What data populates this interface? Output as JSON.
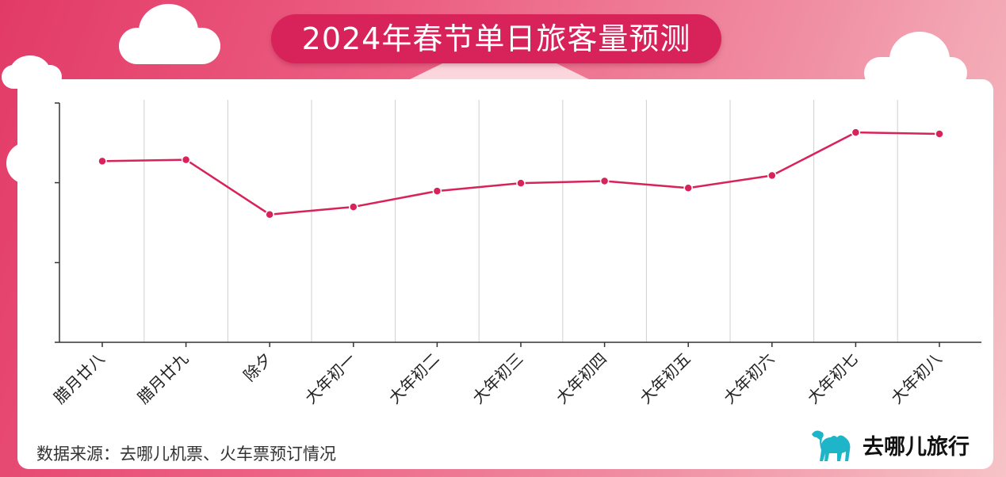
{
  "title": "2024年春节单日旅客量预测",
  "source": "数据来源：去哪儿机票、火车票预订情况",
  "brand": {
    "name": "去哪儿旅行",
    "icon": "camel-icon",
    "color": "#1fb5c8"
  },
  "colors": {
    "line": "#d8225a",
    "title_bg": "#d8225a"
  },
  "chart_data": {
    "type": "line",
    "categories": [
      "腊月廿八",
      "腊月廿九",
      "除夕",
      "大年初一",
      "大年初二",
      "大年初三",
      "大年初四",
      "大年初五",
      "大年初六",
      "大年初七",
      "大年初八"
    ],
    "series": [
      {
        "values": [
          0.757,
          0.763,
          0.534,
          0.566,
          0.632,
          0.665,
          0.674,
          0.645,
          0.697,
          0.877,
          0.871
        ]
      }
    ],
    "ylim": [
      0,
      1
    ],
    "yticks": [
      0.333,
      0.667,
      1
    ],
    "grid": "vertical",
    "xlabel": "",
    "ylabel": ""
  }
}
